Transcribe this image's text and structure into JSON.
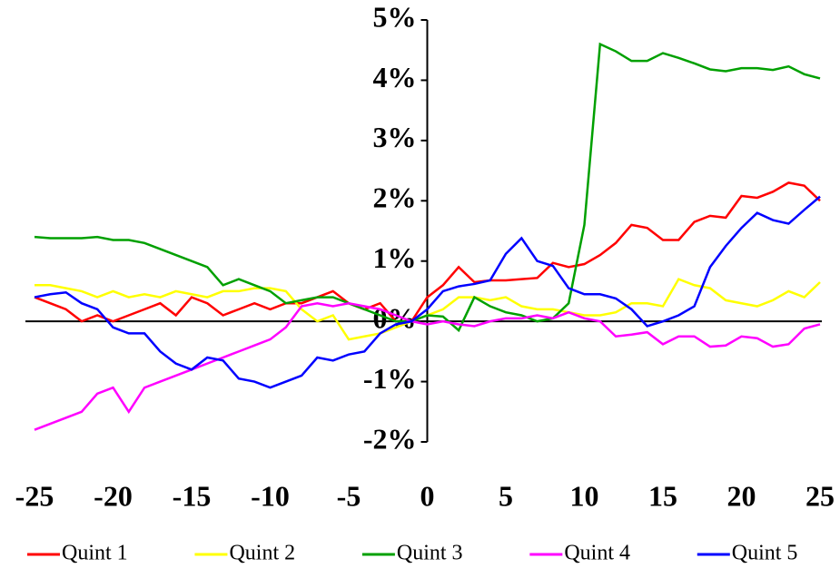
{
  "chart_data": {
    "type": "line",
    "x": [
      -25,
      -24,
      -23,
      -22,
      -21,
      -20,
      -19,
      -18,
      -17,
      -16,
      -15,
      -14,
      -13,
      -12,
      -11,
      -10,
      -9,
      -8,
      -7,
      -6,
      -5,
      -4,
      -3,
      -2,
      -1,
      0,
      1,
      2,
      3,
      4,
      5,
      6,
      7,
      8,
      9,
      10,
      11,
      12,
      13,
      14,
      15,
      16,
      17,
      18,
      19,
      20,
      21,
      22,
      23,
      24,
      25
    ],
    "series": [
      {
        "name": "Quint 1",
        "color": "#ff0000",
        "values": [
          0.4,
          0.3,
          0.2,
          0.0,
          0.1,
          0.0,
          0.1,
          0.2,
          0.3,
          0.1,
          0.4,
          0.3,
          0.1,
          0.2,
          0.3,
          0.2,
          0.3,
          0.3,
          0.4,
          0.5,
          0.3,
          0.2,
          0.3,
          0.0,
          0.0,
          0.4,
          0.6,
          0.9,
          0.65,
          0.68,
          0.68,
          0.7,
          0.72,
          0.97,
          0.9,
          0.95,
          1.1,
          1.3,
          1.6,
          1.55,
          1.35,
          1.35,
          1.65,
          1.75,
          1.72,
          2.08,
          2.05,
          2.15,
          2.3,
          2.25,
          2.0
        ]
      },
      {
        "name": "Quint 2",
        "color": "#ffff00",
        "values": [
          0.6,
          0.6,
          0.55,
          0.5,
          0.4,
          0.5,
          0.4,
          0.45,
          0.4,
          0.5,
          0.45,
          0.4,
          0.5,
          0.5,
          0.55,
          0.55,
          0.5,
          0.2,
          0.0,
          0.1,
          -0.3,
          -0.25,
          -0.2,
          -0.1,
          0.0,
          0.1,
          0.2,
          0.4,
          0.4,
          0.35,
          0.4,
          0.25,
          0.2,
          0.2,
          0.15,
          0.1,
          0.1,
          0.15,
          0.3,
          0.3,
          0.25,
          0.7,
          0.6,
          0.55,
          0.35,
          0.3,
          0.25,
          0.35,
          0.5,
          0.4,
          0.65
        ]
      },
      {
        "name": "Quint 3",
        "color": "#00a000",
        "values": [
          1.4,
          1.38,
          1.38,
          1.38,
          1.4,
          1.35,
          1.35,
          1.3,
          1.2,
          1.1,
          1.0,
          0.9,
          0.6,
          0.7,
          0.6,
          0.5,
          0.3,
          0.35,
          0.4,
          0.4,
          0.3,
          0.2,
          0.1,
          0.0,
          0.0,
          0.1,
          0.08,
          -0.15,
          0.4,
          0.25,
          0.15,
          0.1,
          0.0,
          0.05,
          0.3,
          1.6,
          4.6,
          4.48,
          4.32,
          4.32,
          4.45,
          4.37,
          4.28,
          4.18,
          4.15,
          4.2,
          4.2,
          4.17,
          4.23,
          4.1,
          4.03
        ]
      },
      {
        "name": "Quint 4",
        "color": "#ff00ff",
        "values": [
          -1.8,
          -1.7,
          -1.6,
          -1.5,
          -1.2,
          -1.1,
          -1.5,
          -1.1,
          -1.0,
          -0.9,
          -0.8,
          -0.7,
          -0.6,
          -0.5,
          -0.4,
          -0.3,
          -0.1,
          0.25,
          0.3,
          0.25,
          0.3,
          0.25,
          0.2,
          0.1,
          0.0,
          -0.05,
          0.0,
          -0.05,
          -0.08,
          0.0,
          0.05,
          0.05,
          0.1,
          0.05,
          0.15,
          0.05,
          0.0,
          -0.25,
          -0.22,
          -0.18,
          -0.38,
          -0.25,
          -0.25,
          -0.42,
          -0.4,
          -0.25,
          -0.28,
          -0.42,
          -0.38,
          -0.12,
          -0.05
        ]
      },
      {
        "name": "Quint 5",
        "color": "#0000ff",
        "values": [
          0.4,
          0.45,
          0.48,
          0.3,
          0.2,
          -0.1,
          -0.2,
          -0.2,
          -0.5,
          -0.7,
          -0.8,
          -0.6,
          -0.65,
          -0.95,
          -1.0,
          -1.1,
          -1.0,
          -0.9,
          -0.6,
          -0.65,
          -0.55,
          -0.5,
          -0.2,
          -0.05,
          0.0,
          0.2,
          0.5,
          0.58,
          0.62,
          0.68,
          1.12,
          1.38,
          1.0,
          0.92,
          0.55,
          0.45,
          0.45,
          0.38,
          0.2,
          -0.08,
          0.0,
          0.1,
          0.25,
          0.9,
          1.25,
          1.55,
          1.8,
          1.68,
          1.62,
          1.85,
          2.07
        ]
      }
    ],
    "xlim": [
      -25,
      25
    ],
    "xticks": [
      -25,
      -20,
      -15,
      -10,
      -5,
      0,
      5,
      10,
      15,
      20,
      25
    ],
    "ylim": [
      -2,
      5
    ],
    "yticks": [
      {
        "value": -2,
        "label": "-2%"
      },
      {
        "value": -1,
        "label": "-1%"
      },
      {
        "value": 0,
        "label": "0%"
      },
      {
        "value": 1,
        "label": "1%"
      },
      {
        "value": 2,
        "label": "2%"
      },
      {
        "value": 3,
        "label": "3%"
      },
      {
        "value": 4,
        "label": "4%"
      },
      {
        "value": 5,
        "label": "5%"
      }
    ],
    "grid": false,
    "legend": "bottom"
  }
}
